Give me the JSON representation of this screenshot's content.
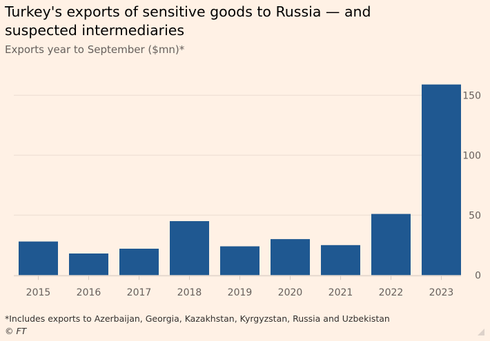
{
  "title": "Turkey's exports of sensitive goods to Russia — and suspected intermediaries",
  "subtitle": "Exports year to September ($mn)*",
  "footnote": "*Includes exports to Azerbaijan, Georgia, Kazakhstan, Kyrgyzstan, Russia and Uzbekistan",
  "source": "© FT",
  "colors": {
    "bar": "#1f5891",
    "background": "#fff1e5",
    "grid": "#ebdcd2"
  },
  "chart_data": {
    "type": "bar",
    "title": "Turkey's exports of sensitive goods to Russia — and suspected intermediaries",
    "subtitle": "Exports year to September ($mn)*",
    "categories": [
      "2015",
      "2016",
      "2017",
      "2018",
      "2019",
      "2020",
      "2021",
      "2022",
      "2023"
    ],
    "values": [
      28,
      18,
      22,
      45,
      24,
      30,
      25,
      51,
      159
    ],
    "ylim": [
      0,
      160
    ],
    "yticks": [
      0,
      50,
      100,
      150
    ],
    "yaxis_position": "right",
    "grid": true,
    "xlabel": "",
    "ylabel": ""
  }
}
